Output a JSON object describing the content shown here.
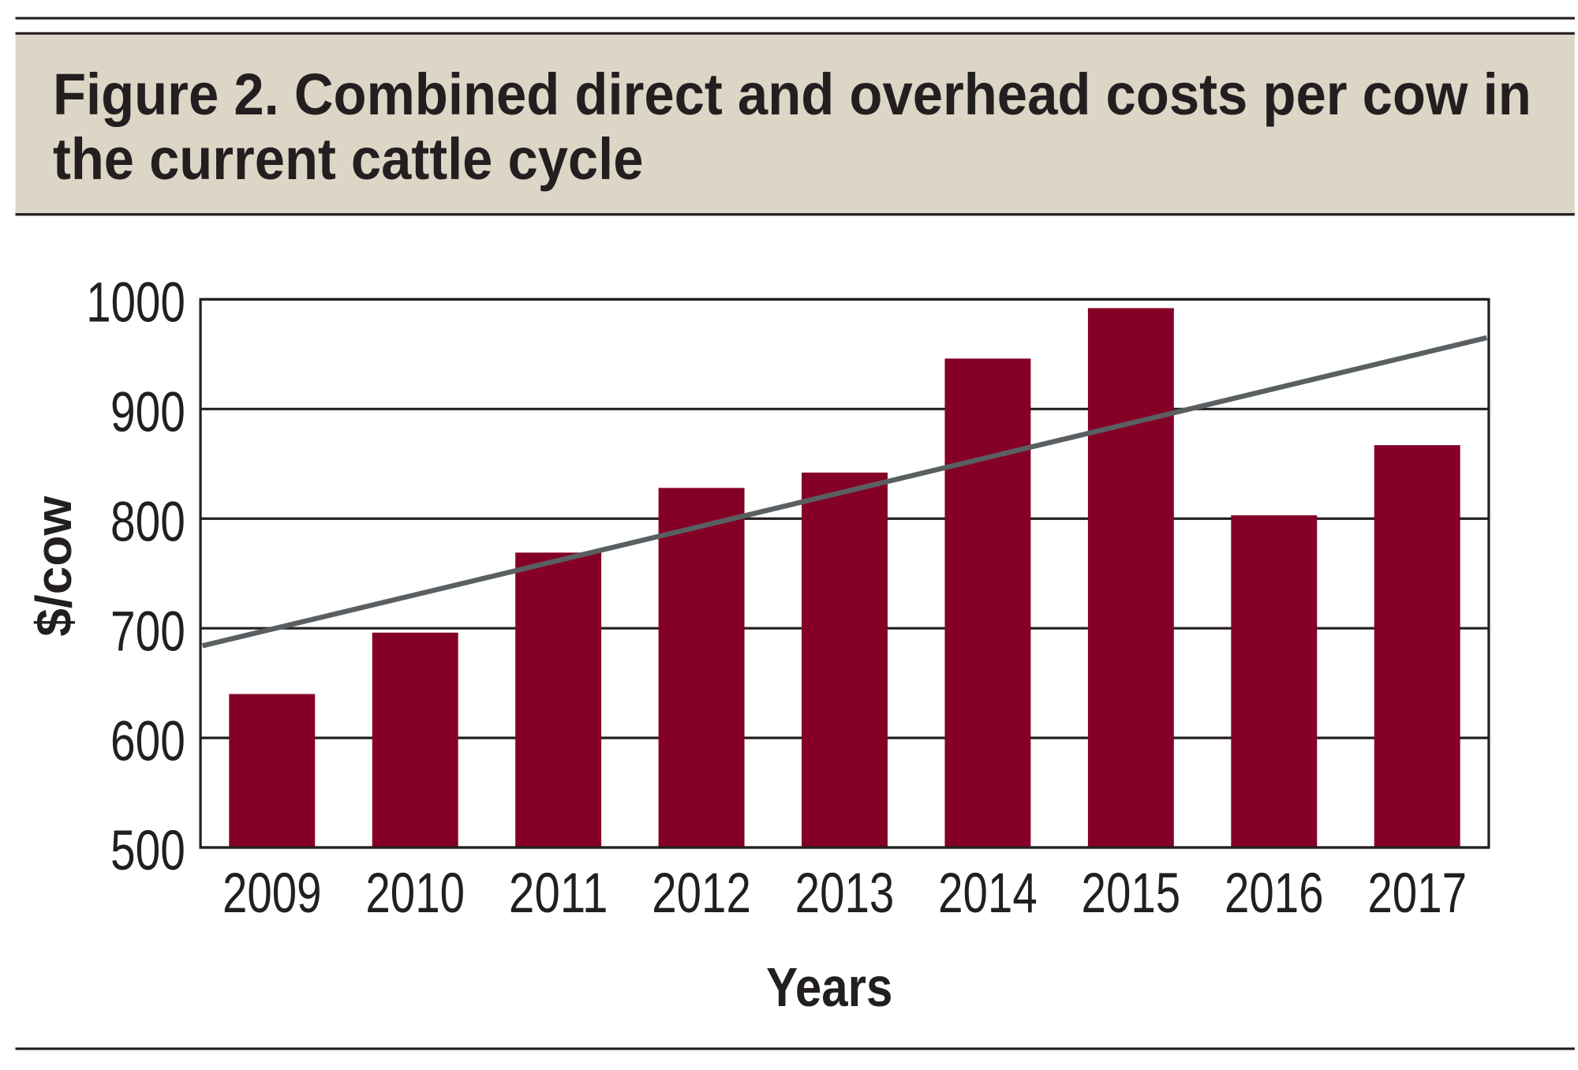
{
  "chart_data": {
    "type": "bar",
    "title": "Figure 2. Combined direct and overhead costs per cow in the current cattle cycle",
    "title_lines": [
      "Figure 2. Combined direct and overhead costs per cow in",
      "the current cattle cycle"
    ],
    "xlabel": "Years",
    "ylabel": "$/cow",
    "categories": [
      "2009",
      "2010",
      "2011",
      "2012",
      "2013",
      "2014",
      "2015",
      "2016",
      "2017"
    ],
    "values": [
      640,
      696,
      769,
      828,
      842,
      946,
      992,
      803,
      867
    ],
    "ylim": [
      500,
      1000
    ],
    "yticks": [
      500,
      600,
      700,
      800,
      900,
      1000
    ],
    "ytick_labels": [
      "500",
      "600",
      "700",
      "800",
      "900",
      "1000"
    ],
    "grid": true,
    "trendline": {
      "type": "linear",
      "start": 684,
      "end": 965
    },
    "colors": {
      "bar": "#850026",
      "trendline": "#5a5f62",
      "title_band": "#ddd5c6"
    }
  }
}
